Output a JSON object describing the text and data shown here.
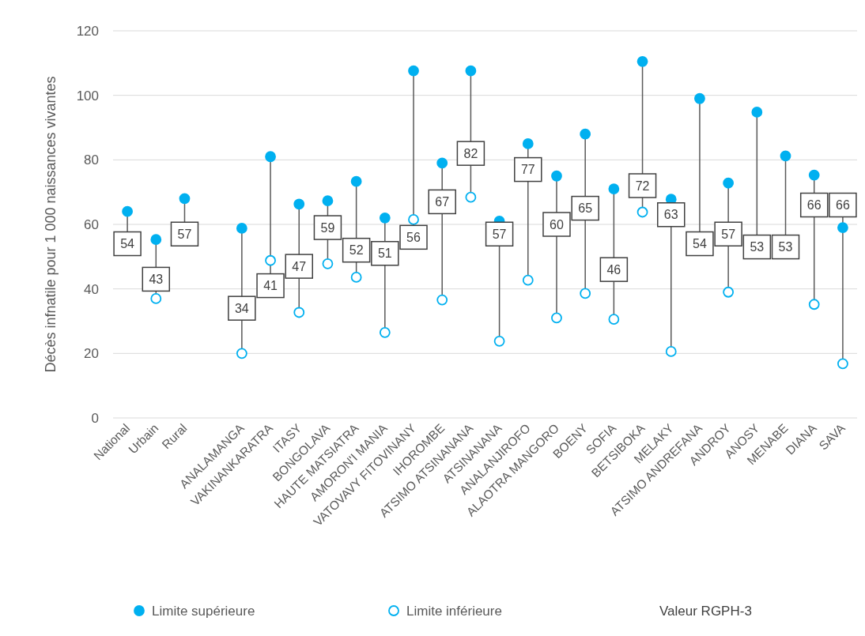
{
  "chart_data": {
    "type": "scatter",
    "ylabel": "Décès infnatile pour 1 000 naissances vivantes",
    "categories": [
      "National",
      "Urbain",
      "Rural",
      null,
      "ANALAMANGA",
      "VAKINANKARATRA",
      "ITASY",
      "BONGOLAVA",
      "HAUTE MATSIATRA",
      "AMORON'I MANIA",
      "VATOVAVY FITOVINANY",
      "IHOROMBE",
      "ATSIMO ATSINANANA",
      "ATSINANANA",
      "ANALANJIROFO",
      "ALAOTRA MANGORO",
      "BOENY",
      "SOFIA",
      "BETSIBOKA",
      "MELAKY",
      "ATSIMO ANDREFANA",
      "ANDROY",
      "ANOSY",
      "MENABE",
      "DIANA",
      "SAVA"
    ],
    "series": [
      {
        "name": "Limite supérieure",
        "color": "#00b0f0",
        "marker": "circle",
        "values": [
          64,
          55.3,
          68,
          null,
          58.8,
          81,
          66.3,
          67.3,
          73.3,
          62,
          107.6,
          79,
          107.6,
          61,
          85,
          75,
          88,
          71,
          110.5,
          67.8,
          99,
          72.8,
          94.8,
          81.2,
          75.3,
          59
        ]
      },
      {
        "name": "Limite inférieure",
        "color": "#00b0f0",
        "marker": "circle",
        "values": [
          null,
          37,
          null,
          null,
          20,
          48.8,
          32.7,
          47.8,
          43.6,
          26.5,
          61.5,
          36.6,
          68.4,
          23.8,
          42.7,
          31,
          38.6,
          30.6,
          63.8,
          20.6,
          null,
          39,
          null,
          null,
          35.2,
          16.8
        ]
      },
      {
        "name": "Valeur RGPH-3",
        "color": "#404040",
        "marker": "square",
        "data_labels": true,
        "values": [
          54,
          43,
          57,
          null,
          34,
          41,
          47,
          59,
          52,
          51,
          56,
          67,
          82,
          57,
          77,
          60,
          65,
          46,
          72,
          63,
          54,
          57,
          53,
          53,
          66,
          66
        ]
      }
    ],
    "ylim": [
      0,
      120
    ],
    "yticks": [
      0,
      20,
      40,
      60,
      80,
      100,
      120
    ],
    "grid": "y",
    "legend": "bottom"
  }
}
